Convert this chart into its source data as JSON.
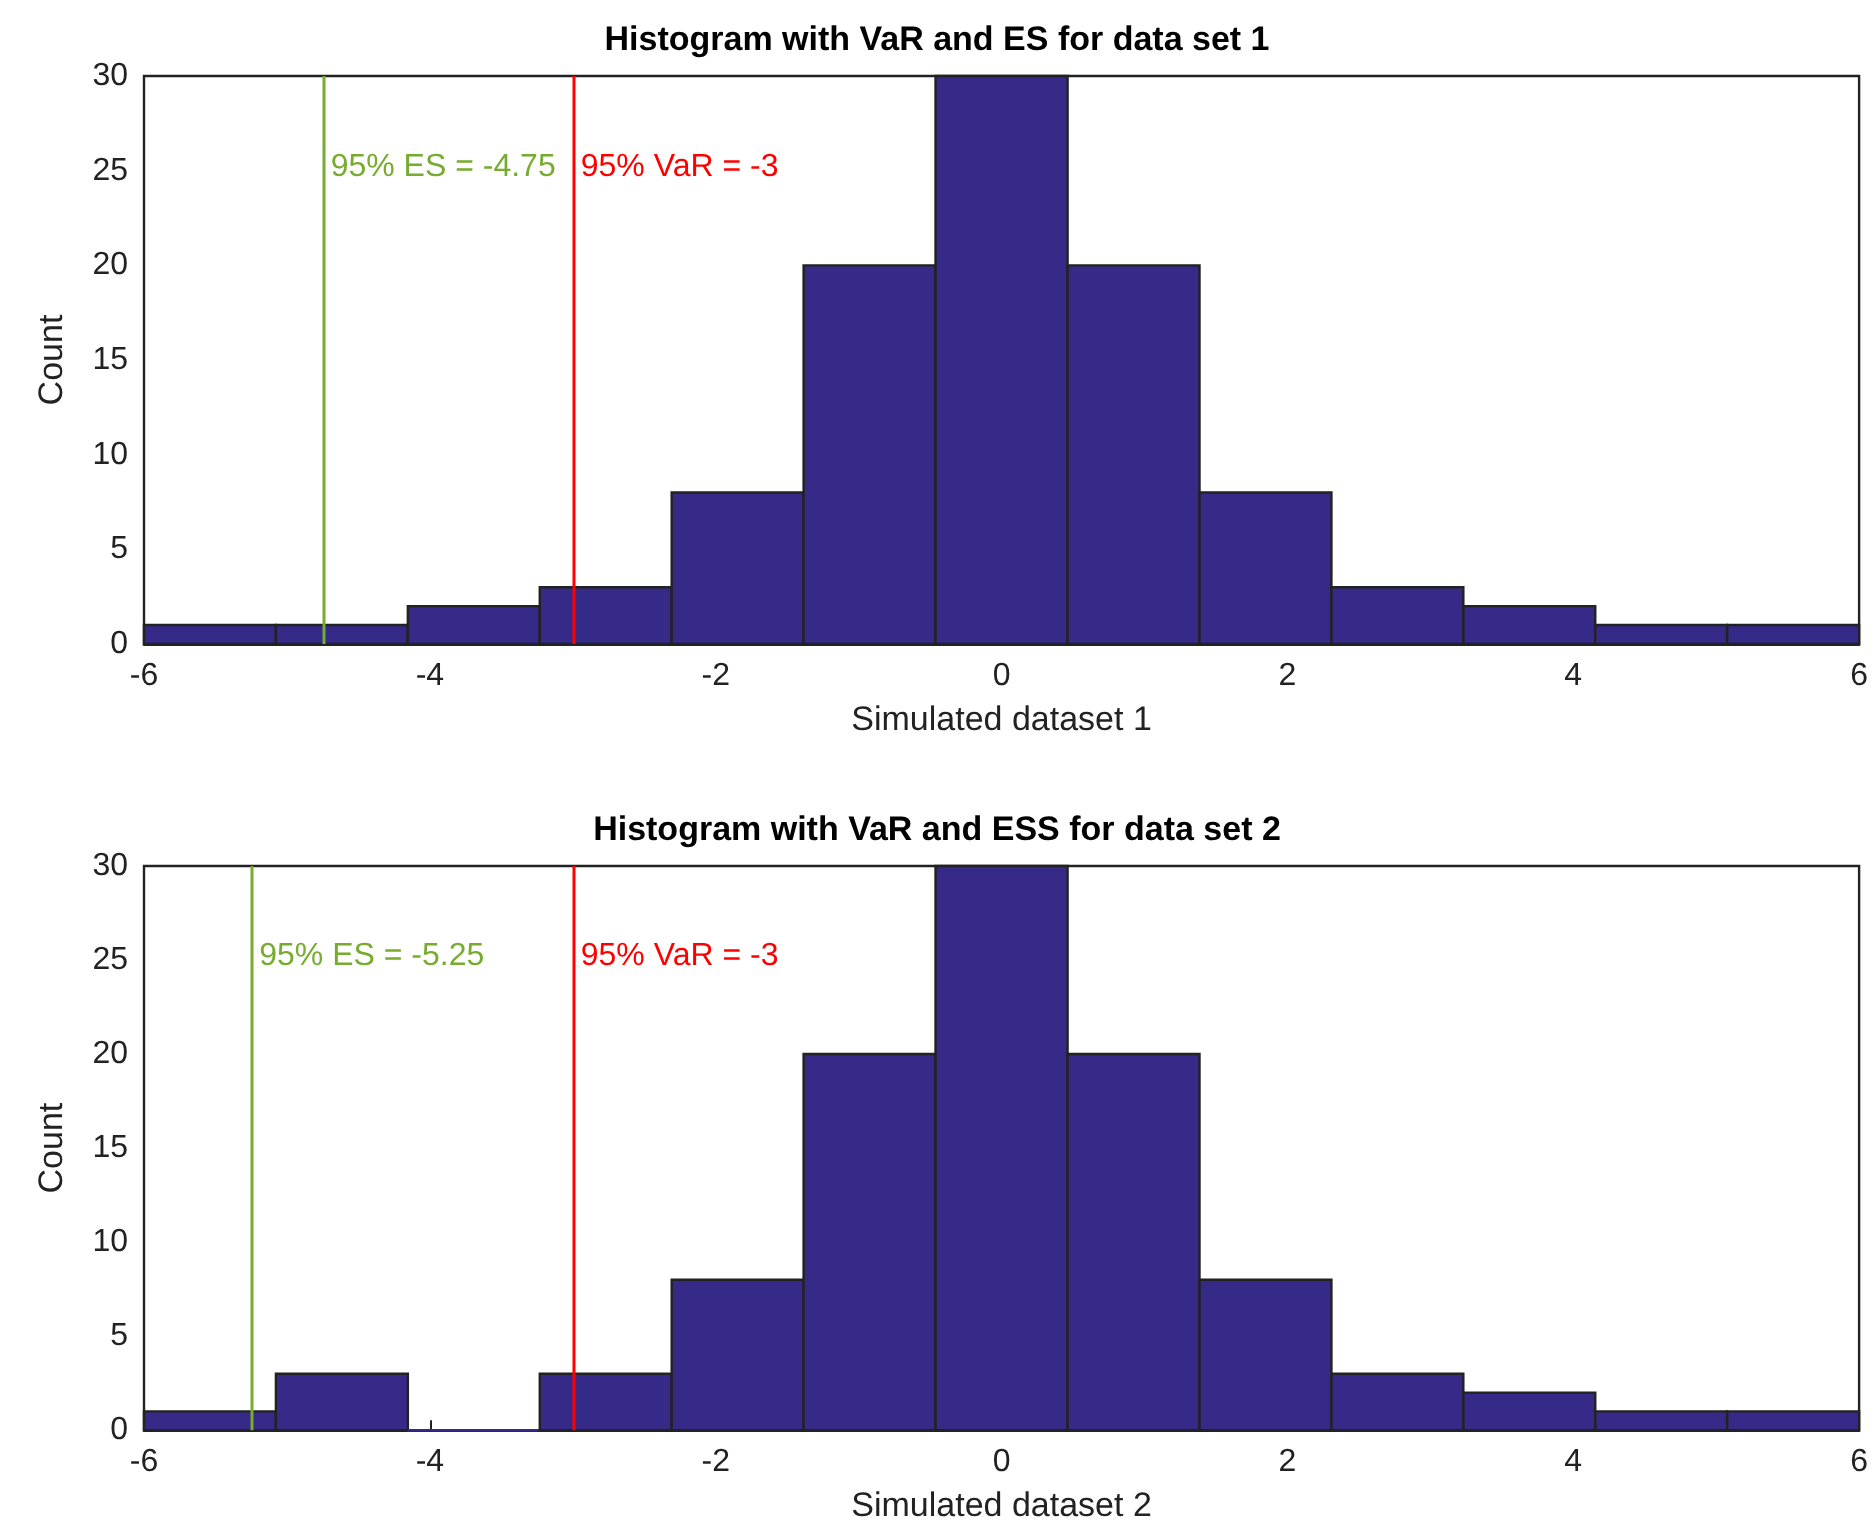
{
  "chart_data": [
    {
      "type": "histogram",
      "title": "Histogram with VaR and ES for data set 1",
      "xlabel": "Simulated dataset 1",
      "ylabel": "Count",
      "bins": [
        -6,
        -5.077,
        -4.154,
        -3.231,
        -2.308,
        -1.385,
        -0.462,
        0.462,
        1.385,
        2.308,
        3.231,
        4.154,
        5.077,
        6
      ],
      "values": [
        1,
        1,
        2,
        3,
        8,
        20,
        30,
        20,
        8,
        3,
        2,
        1,
        1
      ],
      "color": "#352a87",
      "xlim": [
        -6,
        6
      ],
      "xticks": [
        -6,
        -4,
        -2,
        0,
        2,
        4,
        6
      ],
      "ylim": [
        0,
        30
      ],
      "yticks": [
        0,
        5,
        10,
        15,
        20,
        25,
        30
      ],
      "ref_lines": [
        {
          "axis": "x",
          "value": -4.75,
          "label": "95% ES = -4.75",
          "color": "#77ac30"
        },
        {
          "axis": "x",
          "value": -3,
          "label": "95% VaR = -3",
          "color": "#ff0000"
        }
      ]
    },
    {
      "type": "histogram",
      "title": "Histogram with VaR and ESS for data set 2",
      "xlabel": "Simulated dataset 2",
      "ylabel": "Count",
      "bins": [
        -6,
        -5.077,
        -4.154,
        -3.231,
        -2.308,
        -1.385,
        -0.462,
        0.462,
        1.385,
        2.308,
        3.231,
        4.154,
        5.077,
        6
      ],
      "values": [
        1,
        3,
        0,
        3,
        8,
        20,
        30,
        20,
        8,
        3,
        2,
        1,
        1
      ],
      "color": "#352a87",
      "xlim": [
        -6,
        6
      ],
      "xticks": [
        -6,
        -4,
        -2,
        0,
        2,
        4,
        6
      ],
      "ylim": [
        0,
        30
      ],
      "yticks": [
        0,
        5,
        10,
        15,
        20,
        25,
        30
      ],
      "ref_lines": [
        {
          "axis": "x",
          "value": -5.25,
          "label": "95% ES = -5.25",
          "color": "#77ac30"
        },
        {
          "axis": "x",
          "value": -3,
          "label": "95% VaR = -3",
          "color": "#ff0000"
        }
      ]
    }
  ]
}
